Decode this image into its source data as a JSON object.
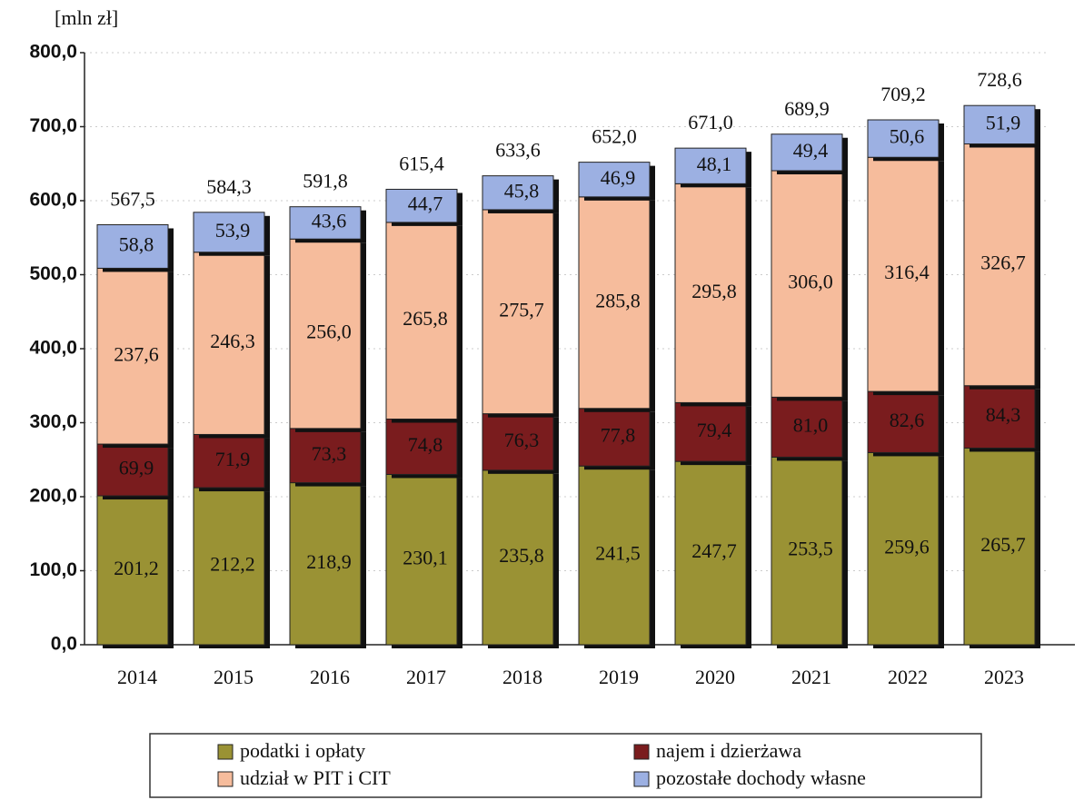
{
  "chart_data": {
    "type": "stacked_bar",
    "y_axis_label": "[mln zł]",
    "categories": [
      "2014",
      "2015",
      "2016",
      "2017",
      "2018",
      "2019",
      "2020",
      "2021",
      "2022",
      "2023"
    ],
    "series": [
      {
        "name": "podatki i opłaty",
        "color": "#9a9234",
        "values": [
          201.2,
          212.2,
          218.9,
          230.1,
          235.8,
          241.5,
          247.7,
          253.5,
          259.6,
          265.7
        ],
        "value_labels": [
          "201,2",
          "212,2",
          "218,9",
          "230,1",
          "235,8",
          "241,5",
          "247,7",
          "253,5",
          "259,6",
          "265,7"
        ]
      },
      {
        "name": "najem i dzierżawa",
        "color": "#7a1c1e",
        "values": [
          69.9,
          71.9,
          73.3,
          74.8,
          76.3,
          77.8,
          79.4,
          81.0,
          82.6,
          84.3
        ],
        "value_labels": [
          "69,9",
          "71,9",
          "73,3",
          "74,8",
          "76,3",
          "77,8",
          "79,4",
          "81,0",
          "82,6",
          "84,3"
        ]
      },
      {
        "name": "udział w PIT i CIT",
        "color": "#f6bc9c",
        "values": [
          237.6,
          246.3,
          256.0,
          265.8,
          275.7,
          285.8,
          295.8,
          306.0,
          316.4,
          326.7
        ],
        "value_labels": [
          "237,6",
          "246,3",
          "256,0",
          "265,8",
          "275,7",
          "285,8",
          "295,8",
          "306,0",
          "316,4",
          "326,7"
        ]
      },
      {
        "name": "pozostałe dochody własne",
        "color": "#9cb0e2",
        "values": [
          58.8,
          53.9,
          43.6,
          44.7,
          45.8,
          46.9,
          48.1,
          49.4,
          50.6,
          51.9
        ],
        "value_labels": [
          "58,8",
          "53,9",
          "43,6",
          "44,7",
          "45,8",
          "46,9",
          "48,1",
          "49,4",
          "50,6",
          "51,9"
        ]
      }
    ],
    "totals": [
      567.5,
      584.3,
      591.8,
      615.4,
      633.6,
      652.0,
      671.0,
      689.9,
      709.2,
      728.6
    ],
    "total_labels": [
      "567,5",
      "584,3",
      "591,8",
      "615,4",
      "633,6",
      "652,0",
      "671,0",
      "689,9",
      "709,2",
      "728,6"
    ],
    "ylim": [
      0,
      800
    ],
    "yticks": [
      {
        "value": 0,
        "label": "0,0"
      },
      {
        "value": 100,
        "label": "100,0"
      },
      {
        "value": 200,
        "label": "200,0"
      },
      {
        "value": 300,
        "label": "300,0"
      },
      {
        "value": 400,
        "label": "400,0"
      },
      {
        "value": 500,
        "label": "500,0"
      },
      {
        "value": 600,
        "label": "600,0"
      },
      {
        "value": 700,
        "label": "700,0"
      },
      {
        "value": 800,
        "label": "800,0"
      }
    ],
    "grid": true,
    "legend": "bottom"
  }
}
